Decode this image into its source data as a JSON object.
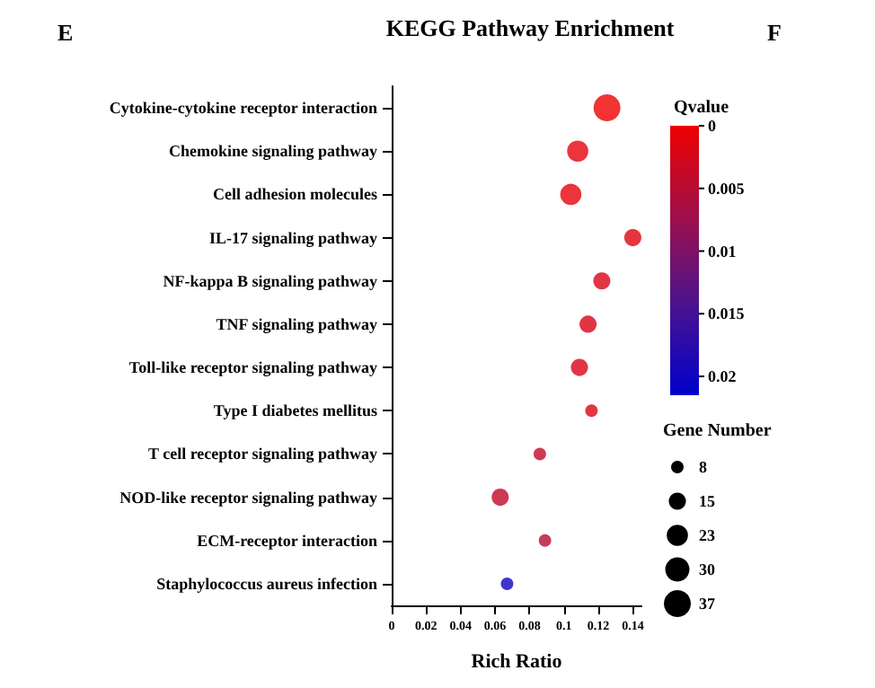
{
  "chart_data": {
    "type": "bubble",
    "title": "KEGG Pathway Enrichment",
    "xlabel": "Rich Ratio",
    "categories": [
      "Cytokine-cytokine receptor interaction",
      "Chemokine signaling pathway",
      "Cell adhesion molecules",
      "IL-17 signaling pathway",
      "NF-kappa B signaling pathway",
      "TNF signaling pathway",
      "Toll-like receptor signaling pathway",
      "Type I diabetes mellitus",
      "T cell receptor signaling pathway",
      "NOD-like receptor signaling pathway",
      "ECM-receptor interaction",
      "Staphylococcus aureus infection"
    ],
    "values": [
      0.125,
      0.108,
      0.104,
      0.14,
      0.122,
      0.114,
      0.109,
      0.116,
      0.086,
      0.063,
      0.089,
      0.067
    ],
    "sizes": [
      37,
      23,
      23,
      15,
      15,
      15,
      15,
      8,
      8,
      15,
      8,
      8
    ],
    "cvalues": [
      0,
      0.001,
      0.001,
      0.0015,
      0.002,
      0.002,
      0.002,
      0.002,
      0.004,
      0.004,
      0.005,
      0.02
    ],
    "size_legend": [
      8,
      15,
      23,
      30,
      37
    ],
    "legend_title": "Gene Number",
    "clabel": "Qvalue",
    "clim": [
      0,
      0.0215
    ],
    "cticks": [
      0,
      0.005,
      0.01,
      0.015,
      0.02
    ],
    "orientation": "horizontal",
    "xlim": [
      0,
      0.145
    ],
    "xticks": [
      0,
      0.02,
      0.04,
      0.06,
      0.08,
      0.1,
      0.12,
      0.14
    ],
    "annotations": [
      "E",
      "F"
    ]
  }
}
